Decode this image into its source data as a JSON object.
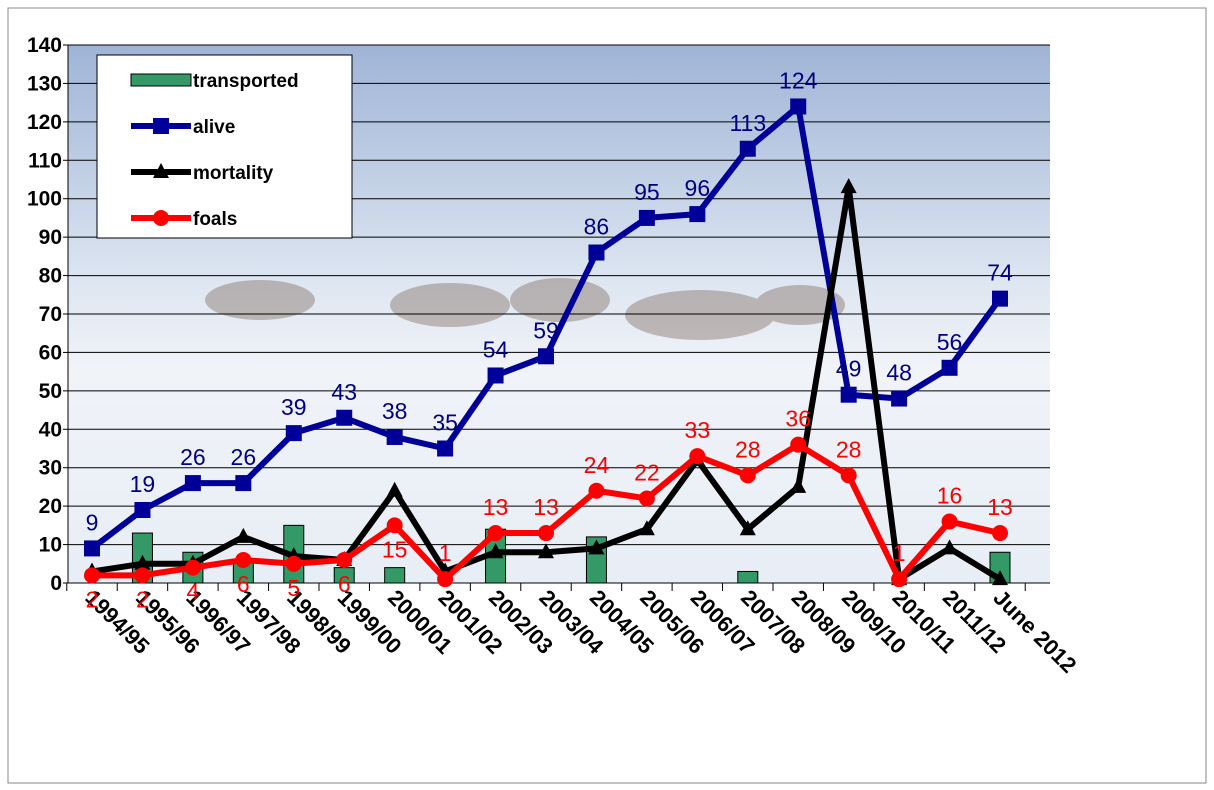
{
  "chart_data": {
    "type": "line",
    "categories": [
      "1994/95",
      "1995/96",
      "1996/97",
      "1997/98",
      "1998/99",
      "1999/00",
      "2000/01",
      "2001/02",
      "2002/03",
      "2003/04",
      "2004/05",
      "2005/06",
      "2006/07",
      "2007/08",
      "2008/09",
      "2009/10",
      "2010/11",
      "2011/12",
      "June 2012"
    ],
    "ylim": [
      0,
      140
    ],
    "yticks": [
      0,
      10,
      20,
      30,
      40,
      50,
      60,
      70,
      80,
      90,
      100,
      110,
      120,
      130,
      140
    ],
    "grid": true,
    "legend": "top-left",
    "series": [
      {
        "name": "transported",
        "type": "bar",
        "color": "#339966",
        "values": [
          0,
          13,
          8,
          6,
          15,
          4,
          4,
          0,
          14,
          0,
          12,
          0,
          0,
          3,
          0,
          0,
          0,
          0,
          8
        ]
      },
      {
        "name": "alive",
        "type": "line",
        "marker": "square",
        "color": "#000099",
        "label_color": "#000080",
        "values": [
          9,
          19,
          26,
          26,
          39,
          43,
          38,
          35,
          54,
          59,
          86,
          95,
          96,
          113,
          124,
          49,
          48,
          56,
          74
        ],
        "show_labels": true
      },
      {
        "name": "mortality",
        "type": "line",
        "marker": "triangle",
        "color": "#000000",
        "values": [
          3,
          5,
          5,
          12,
          7,
          6,
          24,
          3,
          8,
          8,
          9,
          14,
          32,
          14,
          25,
          103,
          1,
          9,
          1
        ]
      },
      {
        "name": "foals",
        "type": "line",
        "marker": "circle",
        "color": "#ff0000",
        "label_color": "#ff0000",
        "values": [
          2,
          2,
          4,
          6,
          5,
          6,
          15,
          1,
          13,
          13,
          24,
          22,
          33,
          28,
          36,
          28,
          1,
          16,
          13
        ],
        "show_labels": true
      }
    ]
  }
}
